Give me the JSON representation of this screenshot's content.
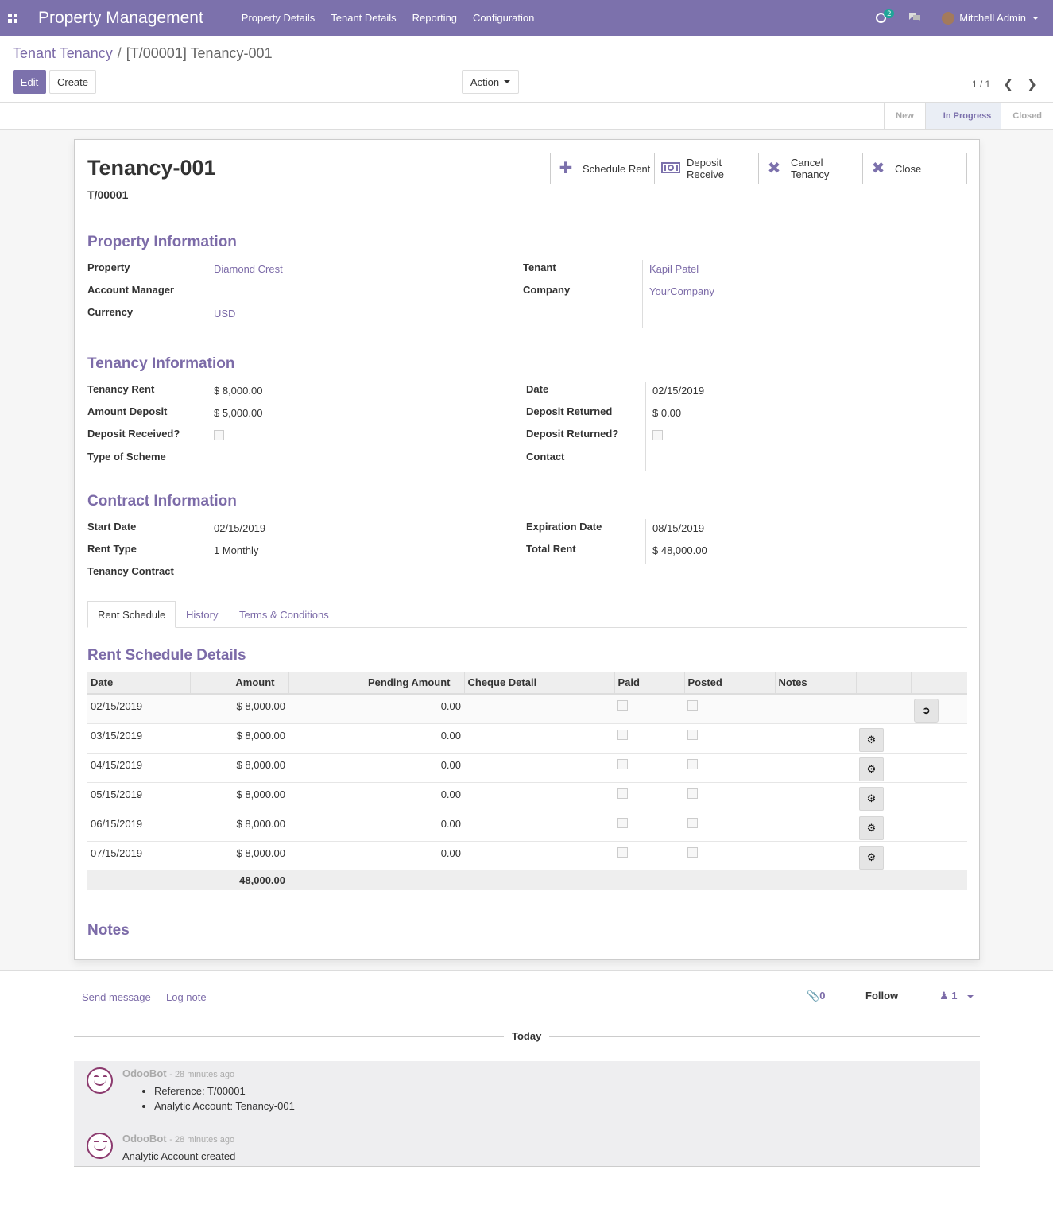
{
  "navbar": {
    "brand": "Property Management",
    "menu": [
      "Property Details",
      "Tenant Details",
      "Reporting",
      "Configuration"
    ],
    "activity_count": "2",
    "user": "Mitchell Admin"
  },
  "breadcrumb": {
    "parent": "Tenant Tenancy",
    "separator": "/",
    "current": "[T/00001] Tenancy-001"
  },
  "buttons": {
    "edit": "Edit",
    "create": "Create",
    "action": "Action"
  },
  "pager": {
    "value": "1 / 1"
  },
  "stages": [
    "New",
    "In Progress",
    "Closed"
  ],
  "record": {
    "name": "Tenancy-001",
    "ref": "T/00001",
    "smart_buttons": [
      {
        "label": "Schedule Rent",
        "icon": "plus-icon"
      },
      {
        "label": "Deposit Receive",
        "icon": "money-icon"
      },
      {
        "label": "Cancel Tenancy",
        "icon": "times-icon"
      },
      {
        "label": "Close",
        "icon": "times-icon"
      }
    ]
  },
  "property_info": {
    "title": "Property Information",
    "property_label": "Property",
    "property_value": "Diamond Crest",
    "account_manager_label": "Account Manager",
    "account_manager_value": "",
    "currency_label": "Currency",
    "currency_value": "USD",
    "tenant_label": "Tenant",
    "tenant_value": "Kapil Patel",
    "company_label": "Company",
    "company_value": "YourCompany"
  },
  "tenancy_info": {
    "title": "Tenancy Information",
    "rent_label": "Tenancy Rent",
    "rent_value": "$ 8,000.00",
    "deposit_label": "Amount Deposit",
    "deposit_value": "$ 5,000.00",
    "deposit_received_label": "Deposit Received?",
    "deposit_received": false,
    "scheme_label": "Type of Scheme",
    "scheme_value": "",
    "date_label": "Date",
    "date_value": "02/15/2019",
    "deposit_returned_amt_label": "Deposit Returned",
    "deposit_returned_amt_value": "$ 0.00",
    "deposit_returned_label": "Deposit Returned?",
    "deposit_returned": false,
    "contact_label": "Contact",
    "contact_value": ""
  },
  "contract_info": {
    "title": "Contract Information",
    "start_label": "Start Date",
    "start_value": "02/15/2019",
    "rent_type_label": "Rent Type",
    "rent_type_value": "1 Monthly",
    "contract_label": "Tenancy Contract",
    "contract_value": "",
    "expiration_label": "Expiration Date",
    "expiration_value": "08/15/2019",
    "total_label": "Total Rent",
    "total_value": "$ 48,000.00"
  },
  "tabs": [
    "Rent Schedule",
    "History",
    "Terms & Conditions"
  ],
  "rent_schedule": {
    "title": "Rent Schedule Details",
    "columns": [
      "Date",
      "Amount",
      "Pending Amount",
      "Cheque Detail",
      "Paid",
      "Posted",
      "Notes"
    ],
    "rows": [
      {
        "date": "02/15/2019",
        "amount": "$ 8,000.00",
        "pending": "0.00",
        "paid": false,
        "posted": false
      },
      {
        "date": "03/15/2019",
        "amount": "$ 8,000.00",
        "pending": "0.00",
        "paid": false,
        "posted": false
      },
      {
        "date": "04/15/2019",
        "amount": "$ 8,000.00",
        "pending": "0.00",
        "paid": false,
        "posted": false
      },
      {
        "date": "05/15/2019",
        "amount": "$ 8,000.00",
        "pending": "0.00",
        "paid": false,
        "posted": false
      },
      {
        "date": "06/15/2019",
        "amount": "$ 8,000.00",
        "pending": "0.00",
        "paid": false,
        "posted": false
      },
      {
        "date": "07/15/2019",
        "amount": "$ 8,000.00",
        "pending": "0.00",
        "paid": false,
        "posted": false
      }
    ],
    "total": "48,000.00"
  },
  "notes_title": "Notes",
  "chatter": {
    "send_message": "Send message",
    "log_note": "Log note",
    "attachments": "0",
    "follow": "Follow",
    "followers": "1",
    "today": "Today",
    "messages": [
      {
        "author": "OdooBot",
        "when": "- 28 minutes ago",
        "items": [
          "Reference: T/00001",
          "Analytic Account: Tenancy-001"
        ]
      },
      {
        "author": "OdooBot",
        "when": "- 28 minutes ago",
        "body": "Analytic Account created"
      }
    ]
  },
  "colors": {
    "brand": "#7c71ac",
    "accent_text": "#7c6ba8"
  }
}
